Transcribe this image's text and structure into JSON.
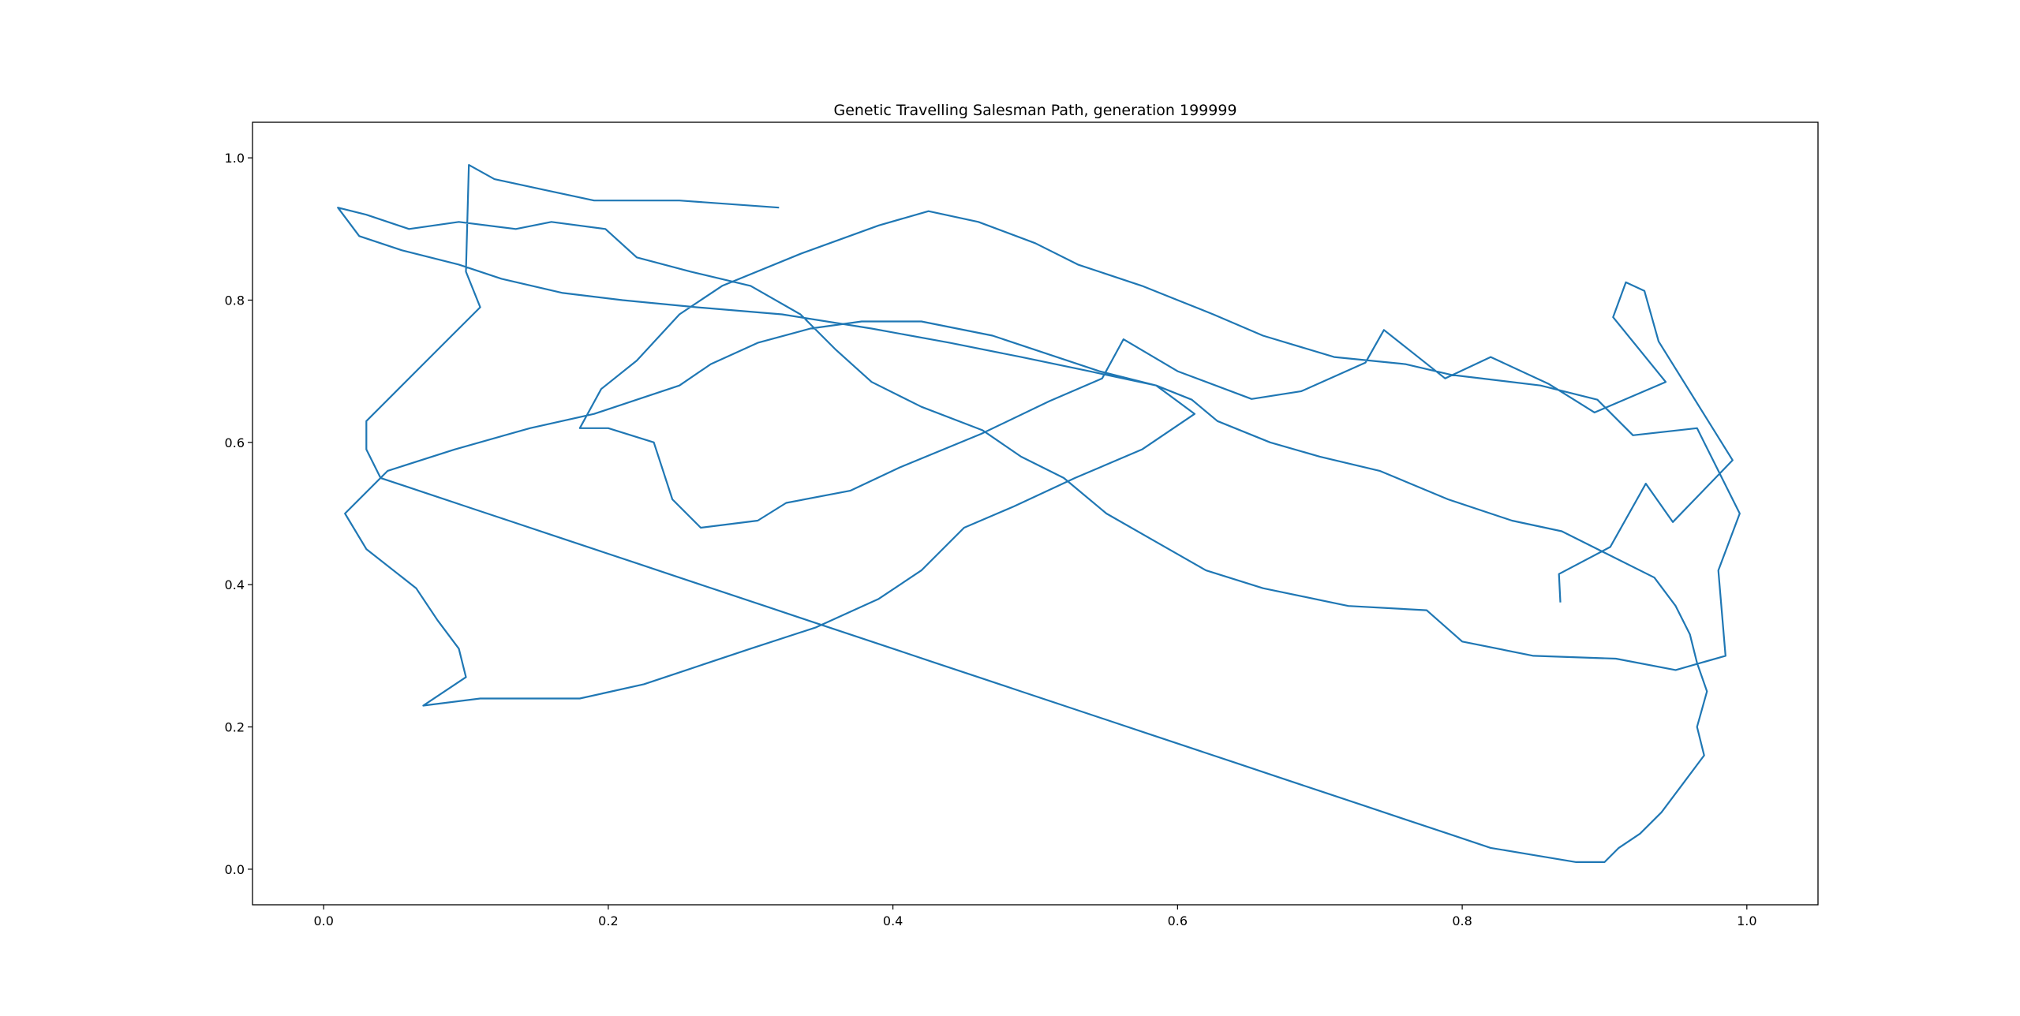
{
  "chart_data": {
    "type": "line",
    "title": "Genetic Travelling Salesman Path, generation 199999",
    "xlabel": "",
    "ylabel": "",
    "xlim": [
      -0.05,
      1.05
    ],
    "ylim": [
      -0.05,
      1.05
    ],
    "x_ticks": [
      "0.0",
      "0.2",
      "0.4",
      "0.6",
      "0.8",
      "1.0"
    ],
    "y_ticks": [
      "0.0",
      "0.2",
      "0.4",
      "0.6",
      "0.8",
      "1.0"
    ],
    "grid": false,
    "line_color": "#1f77b4",
    "series": [
      {
        "values": [
          [
            0.869,
            0.375
          ],
          [
            0.868,
            0.415
          ],
          [
            0.904,
            0.453
          ],
          [
            0.929,
            0.542
          ],
          [
            0.948,
            0.488
          ],
          [
            0.99,
            0.575
          ],
          [
            0.938,
            0.742
          ],
          [
            0.928,
            0.813
          ],
          [
            0.915,
            0.825
          ],
          [
            0.906,
            0.776
          ],
          [
            0.943,
            0.685
          ],
          [
            0.893,
            0.642
          ],
          [
            0.861,
            0.682
          ],
          [
            0.82,
            0.72
          ],
          [
            0.788,
            0.69
          ],
          [
            0.745,
            0.758
          ],
          [
            0.732,
            0.712
          ],
          [
            0.687,
            0.672
          ],
          [
            0.652,
            0.661
          ],
          [
            0.6,
            0.7
          ],
          [
            0.562,
            0.745
          ],
          [
            0.547,
            0.69
          ],
          [
            0.51,
            0.658
          ],
          [
            0.462,
            0.612
          ],
          [
            0.405,
            0.565
          ],
          [
            0.37,
            0.532
          ],
          [
            0.325,
            0.515
          ],
          [
            0.305,
            0.49
          ],
          [
            0.265,
            0.48
          ],
          [
            0.245,
            0.52
          ],
          [
            0.232,
            0.6
          ],
          [
            0.2,
            0.62
          ],
          [
            0.18,
            0.62
          ],
          [
            0.195,
            0.675
          ],
          [
            0.22,
            0.715
          ],
          [
            0.25,
            0.78
          ],
          [
            0.28,
            0.82
          ],
          [
            0.335,
            0.865
          ],
          [
            0.39,
            0.905
          ],
          [
            0.425,
            0.925
          ],
          [
            0.46,
            0.91
          ],
          [
            0.5,
            0.88
          ],
          [
            0.53,
            0.85
          ],
          [
            0.575,
            0.82
          ],
          [
            0.625,
            0.78
          ],
          [
            0.66,
            0.75
          ],
          [
            0.71,
            0.72
          ],
          [
            0.76,
            0.71
          ],
          [
            0.792,
            0.695
          ],
          [
            0.855,
            0.68
          ],
          [
            0.895,
            0.66
          ],
          [
            0.92,
            0.61
          ],
          [
            0.965,
            0.62
          ],
          [
            0.995,
            0.5
          ],
          [
            0.98,
            0.42
          ],
          [
            0.985,
            0.3
          ],
          [
            0.95,
            0.28
          ],
          [
            0.908,
            0.296
          ],
          [
            0.85,
            0.3
          ],
          [
            0.8,
            0.32
          ],
          [
            0.775,
            0.364
          ],
          [
            0.72,
            0.37
          ],
          [
            0.66,
            0.395
          ],
          [
            0.62,
            0.42
          ],
          [
            0.585,
            0.46
          ],
          [
            0.55,
            0.5
          ],
          [
            0.52,
            0.55
          ],
          [
            0.49,
            0.58
          ],
          [
            0.463,
            0.617
          ],
          [
            0.42,
            0.65
          ],
          [
            0.385,
            0.685
          ],
          [
            0.36,
            0.73
          ],
          [
            0.335,
            0.78
          ],
          [
            0.3,
            0.82
          ],
          [
            0.258,
            0.84
          ],
          [
            0.22,
            0.86
          ],
          [
            0.198,
            0.9
          ],
          [
            0.16,
            0.91
          ],
          [
            0.135,
            0.9
          ],
          [
            0.095,
            0.91
          ],
          [
            0.06,
            0.9
          ],
          [
            0.03,
            0.92
          ],
          [
            0.01,
            0.93
          ],
          [
            0.025,
            0.89
          ],
          [
            0.055,
            0.87
          ],
          [
            0.095,
            0.85
          ],
          [
            0.125,
            0.83
          ],
          [
            0.168,
            0.81
          ],
          [
            0.21,
            0.8
          ],
          [
            0.262,
            0.79
          ],
          [
            0.322,
            0.78
          ],
          [
            0.385,
            0.76
          ],
          [
            0.44,
            0.74
          ],
          [
            0.49,
            0.72
          ],
          [
            0.538,
            0.7
          ],
          [
            0.585,
            0.68
          ],
          [
            0.612,
            0.64
          ],
          [
            0.575,
            0.59
          ],
          [
            0.528,
            0.55
          ],
          [
            0.485,
            0.51
          ],
          [
            0.45,
            0.48
          ],
          [
            0.42,
            0.42
          ],
          [
            0.39,
            0.38
          ],
          [
            0.346,
            0.34
          ],
          [
            0.3,
            0.31
          ],
          [
            0.255,
            0.28
          ],
          [
            0.225,
            0.26
          ],
          [
            0.18,
            0.24
          ],
          [
            0.135,
            0.24
          ],
          [
            0.11,
            0.24
          ],
          [
            0.07,
            0.23
          ],
          [
            0.1,
            0.27
          ],
          [
            0.095,
            0.31
          ],
          [
            0.08,
            0.35
          ],
          [
            0.065,
            0.395
          ],
          [
            0.03,
            0.45
          ],
          [
            0.015,
            0.5
          ],
          [
            0.045,
            0.56
          ],
          [
            0.092,
            0.59
          ],
          [
            0.145,
            0.62
          ],
          [
            0.19,
            0.64
          ],
          [
            0.22,
            0.66
          ],
          [
            0.25,
            0.68
          ],
          [
            0.272,
            0.71
          ],
          [
            0.305,
            0.74
          ],
          [
            0.342,
            0.76
          ],
          [
            0.378,
            0.77
          ],
          [
            0.42,
            0.77
          ],
          [
            0.47,
            0.75
          ],
          [
            0.515,
            0.72
          ],
          [
            0.545,
            0.7
          ],
          [
            0.585,
            0.68
          ],
          [
            0.61,
            0.66
          ],
          [
            0.628,
            0.63
          ],
          [
            0.665,
            0.6
          ],
          [
            0.7,
            0.58
          ],
          [
            0.742,
            0.56
          ],
          [
            0.79,
            0.52
          ],
          [
            0.835,
            0.49
          ],
          [
            0.87,
            0.475
          ],
          [
            0.905,
            0.44
          ],
          [
            0.935,
            0.41
          ],
          [
            0.95,
            0.37
          ],
          [
            0.96,
            0.33
          ],
          [
            0.965,
            0.29
          ],
          [
            0.972,
            0.25
          ],
          [
            0.965,
            0.2
          ],
          [
            0.97,
            0.16
          ],
          [
            0.955,
            0.12
          ],
          [
            0.94,
            0.08
          ],
          [
            0.925,
            0.05
          ],
          [
            0.91,
            0.03
          ],
          [
            0.9,
            0.01
          ],
          [
            0.88,
            0.01
          ],
          [
            0.85,
            0.02
          ],
          [
            0.82,
            0.03
          ],
          [
            0.79,
            0.05
          ],
          [
            0.76,
            0.07
          ],
          [
            0.73,
            0.09
          ],
          [
            0.7,
            0.11
          ],
          [
            0.67,
            0.13
          ],
          [
            0.64,
            0.15
          ],
          [
            0.61,
            0.17
          ],
          [
            0.58,
            0.19
          ],
          [
            0.55,
            0.21
          ],
          [
            0.52,
            0.23
          ],
          [
            0.49,
            0.25
          ],
          [
            0.46,
            0.27
          ],
          [
            0.43,
            0.29
          ],
          [
            0.4,
            0.31
          ],
          [
            0.37,
            0.33
          ],
          [
            0.34,
            0.35
          ],
          [
            0.31,
            0.37
          ],
          [
            0.28,
            0.39
          ],
          [
            0.25,
            0.41
          ],
          [
            0.22,
            0.43
          ],
          [
            0.19,
            0.45
          ],
          [
            0.16,
            0.47
          ],
          [
            0.13,
            0.49
          ],
          [
            0.1,
            0.51
          ],
          [
            0.07,
            0.53
          ],
          [
            0.04,
            0.55
          ],
          [
            0.03,
            0.59
          ],
          [
            0.03,
            0.63
          ],
          [
            0.05,
            0.67
          ],
          [
            0.07,
            0.71
          ],
          [
            0.09,
            0.75
          ],
          [
            0.11,
            0.79
          ],
          [
            0.1,
            0.84
          ],
          [
            0.102,
            0.99
          ],
          [
            0.12,
            0.97
          ],
          [
            0.155,
            0.955
          ],
          [
            0.19,
            0.94
          ],
          [
            0.25,
            0.94
          ],
          [
            0.32,
            0.93
          ]
        ]
      }
    ]
  }
}
